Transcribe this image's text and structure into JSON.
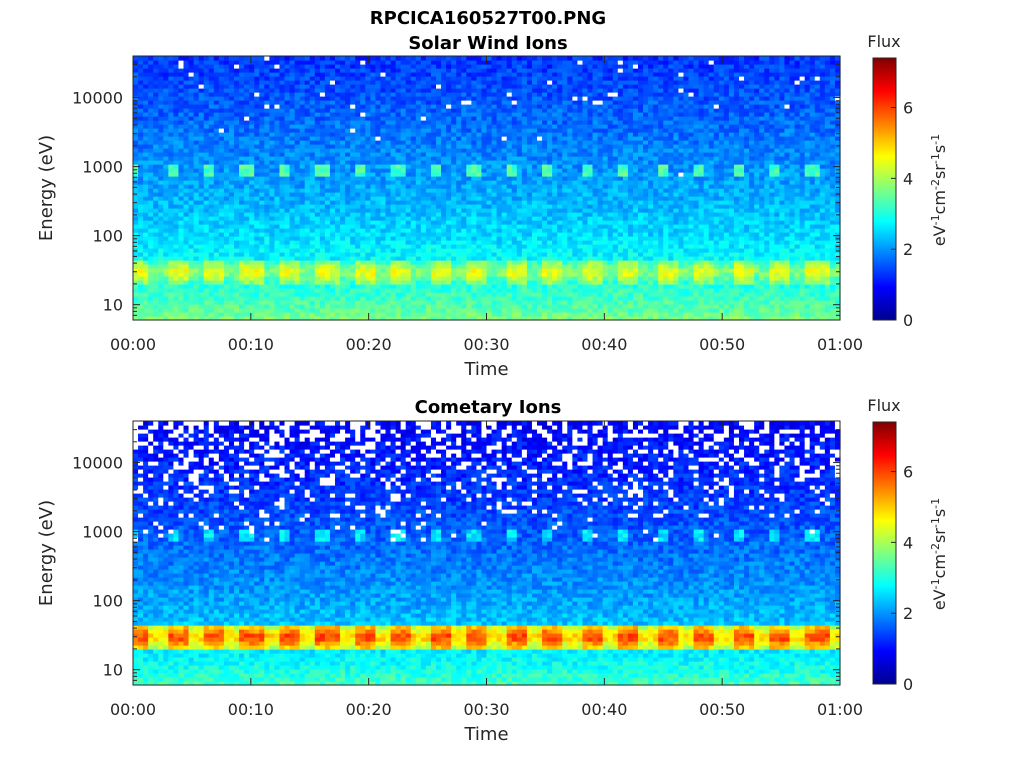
{
  "figure": {
    "title_line1": "RPCICA160527T00.PNG"
  },
  "chart_data": [
    {
      "type": "heatmap",
      "title": "Solar Wind Ions",
      "xlabel": "Time",
      "ylabel": "Energy (eV)",
      "x_ticks": [
        "00:00",
        "00:10",
        "00:20",
        "00:30",
        "00:40",
        "00:50",
        "01:00"
      ],
      "x_range_minutes": [
        0,
        60
      ],
      "y_scale": "log",
      "y_ticks": [
        10,
        100,
        1000,
        10000
      ],
      "y_tick_labels": [
        "10",
        "100",
        "1000",
        "10000"
      ],
      "y_range": [
        6,
        40000
      ],
      "colorbar": {
        "label_top": "Flux",
        "unit": "eV-1 cm-2 sr-1 s-1",
        "range": [
          0,
          7.4
        ],
        "ticks": [
          0,
          2,
          4,
          6
        ],
        "colormap": "jet"
      },
      "features": {
        "background_flux_high_energy": 1.3,
        "background_flux_low_energy": 3.8,
        "band_low_energy_eV": 30,
        "band_low_flux": 4.6,
        "band_mid_energy_eV": 850,
        "band_mid_flux": 3.3,
        "burst_period_minutes": 3.2,
        "missing_data_fraction_high_energy": 0.02
      }
    },
    {
      "type": "heatmap",
      "title": "Cometary Ions",
      "xlabel": "Time",
      "ylabel": "Energy (eV)",
      "x_ticks": [
        "00:00",
        "00:10",
        "00:20",
        "00:30",
        "00:40",
        "00:50",
        "01:00"
      ],
      "x_range_minutes": [
        0,
        60
      ],
      "y_scale": "log",
      "y_ticks": [
        10,
        100,
        1000,
        10000
      ],
      "y_tick_labels": [
        "10",
        "100",
        "1000",
        "10000"
      ],
      "y_range": [
        6,
        40000
      ],
      "colorbar": {
        "label_top": "Flux",
        "unit": "eV-1 cm-2 sr-1 s-1",
        "range": [
          0,
          7.4
        ],
        "ticks": [
          0,
          2,
          4,
          6
        ],
        "colormap": "jet"
      },
      "features": {
        "background_flux_high_energy": 0.9,
        "background_flux_low_energy": 3.4,
        "band_low_energy_eV": 30,
        "band_low_flux": 6.1,
        "band_mid_energy_eV": 850,
        "band_mid_flux": 2.6,
        "burst_period_minutes": 3.2,
        "missing_data_fraction_high_energy": 0.3
      }
    }
  ]
}
